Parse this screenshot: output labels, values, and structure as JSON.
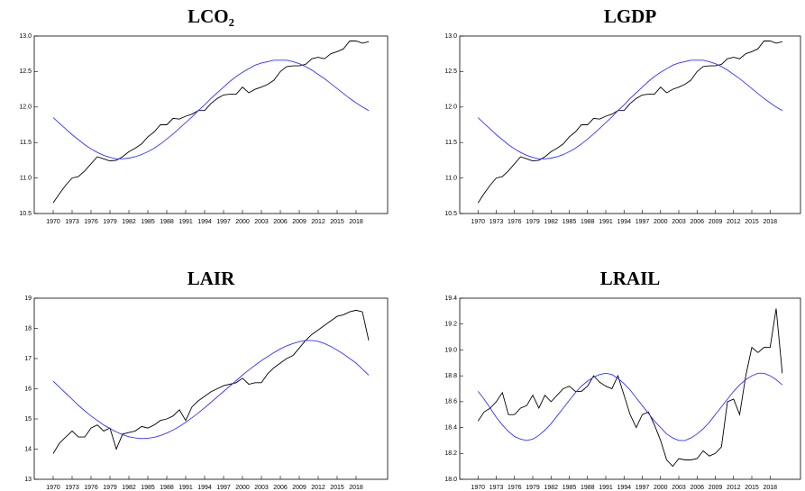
{
  "chart_data": [
    {
      "type": "line",
      "title": "LCO₂",
      "x": [
        1970,
        1971,
        1972,
        1973,
        1974,
        1975,
        1976,
        1977,
        1978,
        1979,
        1980,
        1981,
        1982,
        1983,
        1984,
        1985,
        1986,
        1987,
        1988,
        1989,
        1990,
        1991,
        1992,
        1993,
        1994,
        1995,
        1996,
        1997,
        1998,
        1999,
        2000,
        2001,
        2002,
        2003,
        2004,
        2005,
        2006,
        2007,
        2008,
        2009,
        2010,
        2011,
        2012,
        2013,
        2014,
        2015,
        2016,
        2017,
        2018,
        2019,
        2020
      ],
      "series": [
        {
          "color": "#000000",
          "values": [
            10.65,
            10.78,
            10.9,
            11.0,
            11.02,
            11.1,
            11.2,
            11.3,
            11.27,
            11.24,
            11.25,
            11.3,
            11.37,
            11.42,
            11.48,
            11.58,
            11.65,
            11.75,
            11.75,
            11.84,
            11.83,
            11.87,
            11.9,
            11.95,
            11.95,
            12.05,
            12.12,
            12.17,
            12.18,
            12.18,
            12.28,
            12.2,
            12.25,
            12.28,
            12.32,
            12.38,
            12.5,
            12.57,
            12.58,
            12.58,
            12.6,
            12.68,
            12.7,
            12.68,
            12.75,
            12.78,
            12.82,
            12.93,
            12.93,
            12.9,
            12.92
          ]
        },
        {
          "color": "#3333ff",
          "values": [
            11.85,
            11.77,
            11.69,
            11.61,
            11.54,
            11.47,
            11.41,
            11.36,
            11.32,
            11.29,
            11.27,
            11.27,
            11.28,
            11.3,
            11.33,
            11.37,
            11.42,
            11.48,
            11.55,
            11.62,
            11.7,
            11.78,
            11.86,
            11.95,
            12.03,
            12.12,
            12.2,
            12.28,
            12.36,
            12.43,
            12.49,
            12.54,
            12.59,
            12.62,
            12.64,
            12.66,
            12.66,
            12.66,
            12.64,
            12.61,
            12.57,
            12.52,
            12.46,
            12.4,
            12.33,
            12.26,
            12.19,
            12.12,
            12.06,
            12.0,
            11.95
          ]
        }
      ],
      "xlim": [
        1967,
        2023
      ],
      "xticks": [
        1970,
        1973,
        1976,
        1979,
        1982,
        1985,
        1988,
        1991,
        1994,
        1997,
        2000,
        2003,
        2006,
        2009,
        2012,
        2015,
        2018
      ],
      "ylim": [
        10.5,
        13
      ],
      "yticks": [
        10.5,
        {
          "value": 11,
          "label": "11.0"
        },
        11.5,
        {
          "value": 12,
          "label": "12.0"
        },
        12.5,
        {
          "value": 13,
          "label": "13.0"
        }
      ]
    },
    {
      "type": "line",
      "title": "LGDP",
      "x": [
        1970,
        1971,
        1972,
        1973,
        1974,
        1975,
        1976,
        1977,
        1978,
        1979,
        1980,
        1981,
        1982,
        1983,
        1984,
        1985,
        1986,
        1987,
        1988,
        1989,
        1990,
        1991,
        1992,
        1993,
        1994,
        1995,
        1996,
        1997,
        1998,
        1999,
        2000,
        2001,
        2002,
        2003,
        2004,
        2005,
        2006,
        2007,
        2008,
        2009,
        2010,
        2011,
        2012,
        2013,
        2014,
        2015,
        2016,
        2017,
        2018,
        2019,
        2020
      ],
      "series": [
        {
          "color": "#000000",
          "values": [
            10.65,
            10.78,
            10.9,
            11.0,
            11.02,
            11.1,
            11.2,
            11.3,
            11.27,
            11.24,
            11.25,
            11.3,
            11.37,
            11.42,
            11.48,
            11.58,
            11.65,
            11.75,
            11.75,
            11.84,
            11.83,
            11.87,
            11.9,
            11.95,
            11.95,
            12.05,
            12.12,
            12.17,
            12.18,
            12.18,
            12.28,
            12.2,
            12.25,
            12.28,
            12.32,
            12.38,
            12.5,
            12.57,
            12.58,
            12.58,
            12.6,
            12.68,
            12.7,
            12.68,
            12.75,
            12.78,
            12.82,
            12.93,
            12.93,
            12.9,
            12.92
          ]
        },
        {
          "color": "#3333ff",
          "values": [
            11.85,
            11.77,
            11.69,
            11.61,
            11.54,
            11.47,
            11.41,
            11.36,
            11.32,
            11.29,
            11.27,
            11.27,
            11.28,
            11.3,
            11.33,
            11.37,
            11.42,
            11.48,
            11.55,
            11.62,
            11.7,
            11.78,
            11.86,
            11.95,
            12.03,
            12.12,
            12.2,
            12.28,
            12.36,
            12.43,
            12.49,
            12.54,
            12.59,
            12.62,
            12.64,
            12.66,
            12.66,
            12.66,
            12.64,
            12.61,
            12.57,
            12.52,
            12.46,
            12.4,
            12.33,
            12.26,
            12.19,
            12.12,
            12.06,
            12.0,
            11.95
          ]
        }
      ],
      "xlim": [
        1967,
        2023
      ],
      "xticks": [
        1970,
        1973,
        1976,
        1979,
        1982,
        1985,
        1988,
        1991,
        1994,
        1997,
        2000,
        2003,
        2006,
        2009,
        2012,
        2015,
        2018
      ],
      "ylim": [
        10.5,
        13
      ],
      "yticks": [
        10.5,
        {
          "value": 11,
          "label": "11.0"
        },
        11.5,
        {
          "value": 12,
          "label": "12.0"
        },
        12.5,
        {
          "value": 13,
          "label": "13.0"
        }
      ]
    },
    {
      "type": "line",
      "title": "LAIR",
      "x": [
        1970,
        1971,
        1972,
        1973,
        1974,
        1975,
        1976,
        1977,
        1978,
        1979,
        1980,
        1981,
        1982,
        1983,
        1984,
        1985,
        1986,
        1987,
        1988,
        1989,
        1990,
        1991,
        1992,
        1993,
        1994,
        1995,
        1996,
        1997,
        1998,
        1999,
        2000,
        2001,
        2002,
        2003,
        2004,
        2005,
        2006,
        2007,
        2008,
        2009,
        2010,
        2011,
        2012,
        2013,
        2014,
        2015,
        2016,
        2017,
        2018,
        2019,
        2020
      ],
      "series": [
        {
          "color": "#000000",
          "values": [
            13.85,
            14.2,
            14.4,
            14.6,
            14.4,
            14.4,
            14.7,
            14.8,
            14.6,
            14.7,
            14.0,
            14.5,
            14.55,
            14.6,
            14.75,
            14.7,
            14.8,
            14.95,
            15.0,
            15.1,
            15.3,
            14.95,
            15.4,
            15.6,
            15.75,
            15.9,
            16.0,
            16.1,
            16.15,
            16.2,
            16.35,
            16.15,
            16.2,
            16.2,
            16.5,
            16.7,
            16.85,
            17.0,
            17.1,
            17.35,
            17.6,
            17.8,
            17.95,
            18.1,
            18.25,
            18.4,
            18.45,
            18.55,
            18.6,
            18.55,
            17.6
          ]
        },
        {
          "color": "#3333ff",
          "values": [
            16.25,
            16.05,
            15.85,
            15.65,
            15.45,
            15.27,
            15.1,
            14.95,
            14.8,
            14.68,
            14.57,
            14.48,
            14.41,
            14.37,
            14.35,
            14.36,
            14.39,
            14.45,
            14.53,
            14.63,
            14.75,
            14.89,
            15.04,
            15.2,
            15.37,
            15.55,
            15.73,
            15.91,
            16.09,
            16.27,
            16.45,
            16.62,
            16.78,
            16.93,
            17.07,
            17.2,
            17.32,
            17.42,
            17.5,
            17.56,
            17.6,
            17.6,
            17.57,
            17.5,
            17.4,
            17.28,
            17.15,
            17.0,
            16.85,
            16.65,
            16.45
          ]
        }
      ],
      "xlim": [
        1967,
        2023
      ],
      "xticks": [
        1970,
        1973,
        1976,
        1979,
        1982,
        1985,
        1988,
        1991,
        1994,
        1997,
        2000,
        2003,
        2006,
        2009,
        2012,
        2015,
        2018
      ],
      "ylim": [
        13,
        19
      ],
      "yticks": [
        13,
        14,
        15,
        16,
        17,
        18,
        19
      ]
    },
    {
      "type": "line",
      "title": "LRAIL",
      "x": [
        1970,
        1971,
        1972,
        1973,
        1974,
        1975,
        1976,
        1977,
        1978,
        1979,
        1980,
        1981,
        1982,
        1983,
        1984,
        1985,
        1986,
        1987,
        1988,
        1989,
        1990,
        1991,
        1992,
        1993,
        1994,
        1995,
        1996,
        1997,
        1998,
        1999,
        2000,
        2001,
        2002,
        2003,
        2004,
        2005,
        2006,
        2007,
        2008,
        2009,
        2010,
        2011,
        2012,
        2013,
        2014,
        2015,
        2016,
        2017,
        2018,
        2019,
        2020
      ],
      "series": [
        {
          "color": "#000000",
          "values": [
            18.45,
            18.52,
            18.55,
            18.6,
            18.67,
            18.5,
            18.5,
            18.55,
            18.57,
            18.65,
            18.55,
            18.65,
            18.6,
            18.65,
            18.7,
            18.72,
            18.68,
            18.68,
            18.72,
            18.8,
            18.75,
            18.72,
            18.7,
            18.8,
            18.65,
            18.5,
            18.4,
            18.5,
            18.52,
            18.42,
            18.3,
            18.15,
            18.1,
            18.16,
            18.15,
            18.15,
            18.16,
            18.22,
            18.18,
            18.2,
            18.25,
            18.6,
            18.62,
            18.5,
            18.8,
            19.02,
            18.98,
            19.02,
            19.02,
            19.32,
            18.82
          ]
        },
        {
          "color": "#3333ff",
          "values": [
            18.68,
            18.62,
            18.55,
            18.48,
            18.42,
            18.37,
            18.33,
            18.31,
            18.3,
            18.31,
            18.34,
            18.38,
            18.43,
            18.49,
            18.55,
            18.61,
            18.67,
            18.72,
            18.76,
            18.79,
            18.81,
            18.82,
            18.81,
            18.78,
            18.74,
            18.69,
            18.63,
            18.57,
            18.51,
            18.45,
            18.4,
            18.35,
            18.32,
            18.3,
            18.3,
            18.32,
            18.35,
            18.39,
            18.44,
            18.5,
            18.56,
            18.62,
            18.68,
            18.73,
            18.77,
            18.8,
            18.82,
            18.82,
            18.8,
            18.77,
            18.73
          ]
        }
      ],
      "xlim": [
        1967,
        2023
      ],
      "xticks": [
        1970,
        1973,
        1976,
        1979,
        1982,
        1985,
        1988,
        1991,
        1994,
        1997,
        2000,
        2003,
        2006,
        2009,
        2012,
        2015,
        2018
      ],
      "ylim": [
        18,
        19.4
      ],
      "yticks": [
        {
          "value": 18,
          "label": "18.0"
        },
        18.2,
        18.4,
        18.6,
        18.8,
        {
          "value": 19,
          "label": "19.0"
        },
        19.2,
        19.4
      ]
    }
  ]
}
